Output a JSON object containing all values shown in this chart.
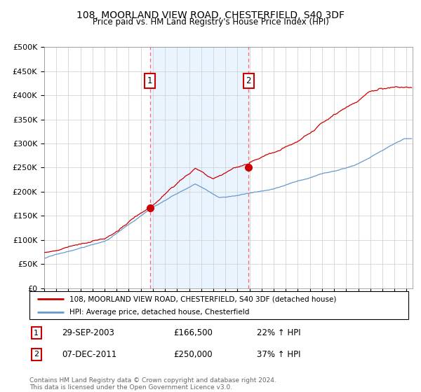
{
  "title": "108, MOORLAND VIEW ROAD, CHESTERFIELD, S40 3DF",
  "subtitle": "Price paid vs. HM Land Registry's House Price Index (HPI)",
  "legend_line1": "108, MOORLAND VIEW ROAD, CHESTERFIELD, S40 3DF (detached house)",
  "legend_line2": "HPI: Average price, detached house, Chesterfield",
  "footer": "Contains HM Land Registry data © Crown copyright and database right 2024.\nThis data is licensed under the Open Government Licence v3.0.",
  "transaction1_label": "1",
  "transaction1_date": "29-SEP-2003",
  "transaction1_price": "£166,500",
  "transaction1_hpi": "22% ↑ HPI",
  "transaction1_year": 2003.75,
  "transaction1_value": 166500,
  "transaction2_label": "2",
  "transaction2_date": "07-DEC-2011",
  "transaction2_price": "£250,000",
  "transaction2_hpi": "37% ↑ HPI",
  "transaction2_year": 2011.92,
  "transaction2_value": 250000,
  "red_color": "#cc0000",
  "blue_color": "#6699cc",
  "background_shading": "#ddeeff",
  "ylim": [
    0,
    500000
  ],
  "yticks": [
    0,
    50000,
    100000,
    150000,
    200000,
    250000,
    300000,
    350000,
    400000,
    450000,
    500000
  ],
  "xlim_start": 1995,
  "xlim_end": 2025.5
}
